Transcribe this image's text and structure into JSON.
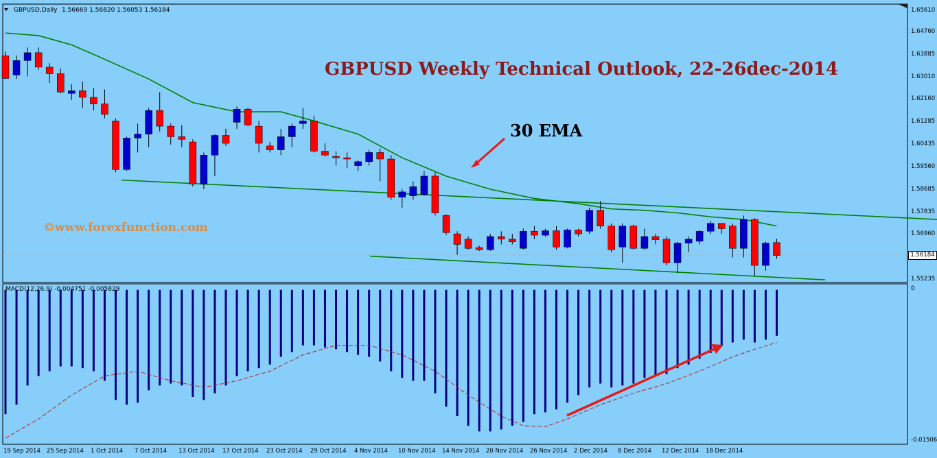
{
  "header": {
    "symbol": "GBPUSD,Daily",
    "ohlc": "1.56669 1.56820 1.56053 1.56184",
    "macd": "MACD(12,26,9) -0.004751 -0.005829"
  },
  "title": "GBPUSD Weekly Technical Outlook, 22-26dec-2014",
  "ema_label": "30 EMA",
  "watermark": "©www.forexfunction.com",
  "price_axis": [
    "1.65610",
    "1.64760",
    "1.63885",
    "1.63010",
    "1.62160",
    "1.61285",
    "1.60435",
    "1.59560",
    "1.58685",
    "1.57835",
    "1.56960",
    "1.55235"
  ],
  "current_price": "1.56184",
  "macd_axis": [
    "0",
    "-0.015064"
  ],
  "date_labels": [
    "19 Sep 2014",
    "25 Sep 2014",
    "1 Oct 2014",
    "7 Oct 2014",
    "13 Oct 2014",
    "17 Oct 2014",
    "23 Oct 2014",
    "29 Oct 2014",
    "4 Nov 2014",
    "10 Nov 2014",
    "14 Nov 2014",
    "20 Nov 2014",
    "26 Nov 2014",
    "2 Dec 2014",
    "8 Dec 2014",
    "12 Dec 2014",
    "18 Dec 2014"
  ],
  "colors": {
    "bull": "#0000CD",
    "bear": "#FF0000",
    "ema": "#008000",
    "trend": "#008000",
    "macd_hist": "#000080",
    "signal": "#B22222",
    "arrow": "#E31B1B",
    "background": "#87CEFA"
  },
  "chart_data": {
    "type": "candlestick",
    "title": "GBPUSD Weekly Technical Outlook, 22-26dec-2014",
    "ylim": [
      1.5515,
      1.6575
    ],
    "macd_ylim": [
      -0.016,
      0.0002
    ],
    "candles": [
      {
        "o": 1.6378,
        "h": 1.6395,
        "l": 1.629,
        "c": 1.6292
      },
      {
        "o": 1.6305,
        "h": 1.638,
        "l": 1.629,
        "c": 1.636
      },
      {
        "o": 1.636,
        "h": 1.641,
        "l": 1.63,
        "c": 1.639
      },
      {
        "o": 1.639,
        "h": 1.641,
        "l": 1.6325,
        "c": 1.6335
      },
      {
        "o": 1.6335,
        "h": 1.635,
        "l": 1.6275,
        "c": 1.631
      },
      {
        "o": 1.631,
        "h": 1.633,
        "l": 1.6235,
        "c": 1.624
      },
      {
        "o": 1.6235,
        "h": 1.627,
        "l": 1.621,
        "c": 1.6245
      },
      {
        "o": 1.6245,
        "h": 1.628,
        "l": 1.618,
        "c": 1.622
      },
      {
        "o": 1.622,
        "h": 1.6255,
        "l": 1.617,
        "c": 1.6195
      },
      {
        "o": 1.6195,
        "h": 1.625,
        "l": 1.614,
        "c": 1.6155
      },
      {
        "o": 1.613,
        "h": 1.614,
        "l": 1.5935,
        "c": 1.5945
      },
      {
        "o": 1.5945,
        "h": 1.607,
        "l": 1.594,
        "c": 1.6065
      },
      {
        "o": 1.6065,
        "h": 1.612,
        "l": 1.601,
        "c": 1.608
      },
      {
        "o": 1.608,
        "h": 1.618,
        "l": 1.603,
        "c": 1.617
      },
      {
        "o": 1.617,
        "h": 1.624,
        "l": 1.609,
        "c": 1.611
      },
      {
        "o": 1.611,
        "h": 1.612,
        "l": 1.604,
        "c": 1.607
      },
      {
        "o": 1.607,
        "h": 1.6115,
        "l": 1.603,
        "c": 1.606
      },
      {
        "o": 1.605,
        "h": 1.606,
        "l": 1.588,
        "c": 1.589
      },
      {
        "o": 1.589,
        "h": 1.601,
        "l": 1.587,
        "c": 1.6
      },
      {
        "o": 1.6,
        "h": 1.608,
        "l": 1.592,
        "c": 1.6075
      },
      {
        "o": 1.6075,
        "h": 1.61,
        "l": 1.6035,
        "c": 1.6045
      },
      {
        "o": 1.6125,
        "h": 1.6185,
        "l": 1.61,
        "c": 1.6175
      },
      {
        "o": 1.6175,
        "h": 1.618,
        "l": 1.611,
        "c": 1.6115
      },
      {
        "o": 1.611,
        "h": 1.613,
        "l": 1.601,
        "c": 1.6045
      },
      {
        "o": 1.6035,
        "h": 1.605,
        "l": 1.601,
        "c": 1.602
      },
      {
        "o": 1.602,
        "h": 1.61,
        "l": 1.6,
        "c": 1.607
      },
      {
        "o": 1.607,
        "h": 1.612,
        "l": 1.603,
        "c": 1.611
      },
      {
        "o": 1.612,
        "h": 1.618,
        "l": 1.61,
        "c": 1.613
      },
      {
        "o": 1.613,
        "h": 1.615,
        "l": 1.601,
        "c": 1.6015
      },
      {
        "o": 1.6015,
        "h": 1.6045,
        "l": 1.5995,
        "c": 1.6
      },
      {
        "o": 1.5995,
        "h": 1.6015,
        "l": 1.596,
        "c": 1.599
      },
      {
        "o": 1.599,
        "h": 1.601,
        "l": 1.595,
        "c": 1.5985
      },
      {
        "o": 1.596,
        "h": 1.598,
        "l": 1.594,
        "c": 1.5975
      },
      {
        "o": 1.5975,
        "h": 1.602,
        "l": 1.596,
        "c": 1.601
      },
      {
        "o": 1.601,
        "h": 1.6025,
        "l": 1.59,
        "c": 1.5985
      },
      {
        "o": 1.5985,
        "h": 1.6,
        "l": 1.583,
        "c": 1.584
      },
      {
        "o": 1.584,
        "h": 1.587,
        "l": 1.58,
        "c": 1.586
      },
      {
        "o": 1.5845,
        "h": 1.59,
        "l": 1.583,
        "c": 1.588
      },
      {
        "o": 1.585,
        "h": 1.594,
        "l": 1.5845,
        "c": 1.592
      },
      {
        "o": 1.592,
        "h": 1.5935,
        "l": 1.577,
        "c": 1.578
      },
      {
        "o": 1.577,
        "h": 1.5775,
        "l": 1.5695,
        "c": 1.5705
      },
      {
        "o": 1.57,
        "h": 1.571,
        "l": 1.562,
        "c": 1.566
      },
      {
        "o": 1.568,
        "h": 1.569,
        "l": 1.564,
        "c": 1.5645
      },
      {
        "o": 1.5648,
        "h": 1.5655,
        "l": 1.5635,
        "c": 1.564
      },
      {
        "o": 1.564,
        "h": 1.57,
        "l": 1.5635,
        "c": 1.569
      },
      {
        "o": 1.569,
        "h": 1.571,
        "l": 1.566,
        "c": 1.568
      },
      {
        "o": 1.568,
        "h": 1.57,
        "l": 1.566,
        "c": 1.567
      },
      {
        "o": 1.5645,
        "h": 1.572,
        "l": 1.564,
        "c": 1.571
      },
      {
        "o": 1.571,
        "h": 1.573,
        "l": 1.568,
        "c": 1.5695
      },
      {
        "o": 1.5695,
        "h": 1.572,
        "l": 1.569,
        "c": 1.5712
      },
      {
        "o": 1.5712,
        "h": 1.573,
        "l": 1.564,
        "c": 1.565
      },
      {
        "o": 1.565,
        "h": 1.572,
        "l": 1.5645,
        "c": 1.5715
      },
      {
        "o": 1.5715,
        "h": 1.572,
        "l": 1.569,
        "c": 1.57
      },
      {
        "o": 1.571,
        "h": 1.58,
        "l": 1.57,
        "c": 1.579
      },
      {
        "o": 1.579,
        "h": 1.5825,
        "l": 1.572,
        "c": 1.573
      },
      {
        "o": 1.573,
        "h": 1.574,
        "l": 1.563,
        "c": 1.564
      },
      {
        "o": 1.565,
        "h": 1.574,
        "l": 1.559,
        "c": 1.573
      },
      {
        "o": 1.573,
        "h": 1.5735,
        "l": 1.564,
        "c": 1.5645
      },
      {
        "o": 1.5645,
        "h": 1.572,
        "l": 1.564,
        "c": 1.569
      },
      {
        "o": 1.569,
        "h": 1.57,
        "l": 1.566,
        "c": 1.5678
      },
      {
        "o": 1.568,
        "h": 1.569,
        "l": 1.558,
        "c": 1.559
      },
      {
        "o": 1.559,
        "h": 1.567,
        "l": 1.555,
        "c": 1.5665
      },
      {
        "o": 1.5665,
        "h": 1.569,
        "l": 1.563,
        "c": 1.568
      },
      {
        "o": 1.5672,
        "h": 1.5715,
        "l": 1.566,
        "c": 1.571
      },
      {
        "o": 1.571,
        "h": 1.575,
        "l": 1.57,
        "c": 1.574
      },
      {
        "o": 1.574,
        "h": 1.574,
        "l": 1.57,
        "c": 1.572
      },
      {
        "o": 1.573,
        "h": 1.574,
        "l": 1.561,
        "c": 1.5645
      },
      {
        "o": 1.5645,
        "h": 1.577,
        "l": 1.561,
        "c": 1.5755
      },
      {
        "o": 1.5755,
        "h": 1.576,
        "l": 1.554,
        "c": 1.558
      },
      {
        "o": 1.558,
        "h": 1.567,
        "l": 1.556,
        "c": 1.5665
      },
      {
        "o": 1.5667,
        "h": 1.5682,
        "l": 1.5605,
        "c": 1.5618
      }
    ],
    "ema30": [
      {
        "i": 0,
        "v": 1.6465
      },
      {
        "i": 3,
        "v": 1.6455
      },
      {
        "i": 6,
        "v": 1.642
      },
      {
        "i": 9,
        "v": 1.6365
      },
      {
        "i": 13,
        "v": 1.629
      },
      {
        "i": 17,
        "v": 1.62
      },
      {
        "i": 21,
        "v": 1.6165
      },
      {
        "i": 25,
        "v": 1.6165
      },
      {
        "i": 28,
        "v": 1.613
      },
      {
        "i": 32,
        "v": 1.608
      },
      {
        "i": 36,
        "v": 1.599
      },
      {
        "i": 40,
        "v": 1.592
      },
      {
        "i": 44,
        "v": 1.587
      },
      {
        "i": 48,
        "v": 1.5835
      },
      {
        "i": 52,
        "v": 1.5815
      },
      {
        "i": 55,
        "v": 1.5795
      },
      {
        "i": 58,
        "v": 1.579
      },
      {
        "i": 61,
        "v": 1.578
      },
      {
        "i": 64,
        "v": 1.5765
      },
      {
        "i": 67,
        "v": 1.5755
      },
      {
        "i": 70,
        "v": 1.573
      }
    ],
    "trendlines": [
      {
        "i1": 10.5,
        "v1": 1.5905,
        "i2": 92,
        "v2": 1.574
      },
      {
        "i1": 33.1,
        "v1": 1.5615,
        "i2": 74.4,
        "v2": 1.5525
      }
    ],
    "macd_histogram": [
      -0.013,
      -0.012,
      -0.01,
      -0.009,
      -0.0085,
      -0.008,
      -0.008,
      -0.0082,
      -0.0085,
      -0.0095,
      -0.0115,
      -0.012,
      -0.0118,
      -0.0105,
      -0.01,
      -0.0098,
      -0.01,
      -0.0112,
      -0.0115,
      -0.0108,
      -0.01,
      -0.009,
      -0.0085,
      -0.0082,
      -0.0078,
      -0.007,
      -0.0065,
      -0.0058,
      -0.0058,
      -0.006,
      -0.0062,
      -0.0065,
      -0.0068,
      -0.007,
      -0.0075,
      -0.0085,
      -0.0092,
      -0.0095,
      -0.0095,
      -0.0108,
      -0.0122,
      -0.0132,
      -0.0142,
      -0.0148,
      -0.0148,
      -0.0146,
      -0.0142,
      -0.0138,
      -0.013,
      -0.0128,
      -0.0125,
      -0.0118,
      -0.011,
      -0.0102,
      -0.0098,
      -0.0102,
      -0.01,
      -0.0098,
      -0.0092,
      -0.009,
      -0.0088,
      -0.0082,
      -0.0078,
      -0.0072,
      -0.0066,
      -0.0058,
      -0.0055,
      -0.0052,
      -0.0055,
      -0.0052,
      -0.0048
    ],
    "macd_signal": [
      {
        "i": 0,
        "v": -0.0155
      },
      {
        "i": 3,
        "v": -0.0135
      },
      {
        "i": 6,
        "v": -0.011
      },
      {
        "i": 9,
        "v": -0.009
      },
      {
        "i": 12,
        "v": -0.0085
      },
      {
        "i": 15,
        "v": -0.0095
      },
      {
        "i": 18,
        "v": -0.0102
      },
      {
        "i": 21,
        "v": -0.0095
      },
      {
        "i": 24,
        "v": -0.0085
      },
      {
        "i": 27,
        "v": -0.0068
      },
      {
        "i": 30,
        "v": -0.0058
      },
      {
        "i": 33,
        "v": -0.0058
      },
      {
        "i": 36,
        "v": -0.0068
      },
      {
        "i": 39,
        "v": -0.0085
      },
      {
        "i": 42,
        "v": -0.011
      },
      {
        "i": 45,
        "v": -0.0132
      },
      {
        "i": 47,
        "v": -0.0142
      },
      {
        "i": 49,
        "v": -0.0143
      },
      {
        "i": 51,
        "v": -0.0135
      },
      {
        "i": 54,
        "v": -0.012
      },
      {
        "i": 57,
        "v": -0.0108
      },
      {
        "i": 60,
        "v": -0.0098
      },
      {
        "i": 63,
        "v": -0.0085
      },
      {
        "i": 66,
        "v": -0.007
      },
      {
        "i": 68,
        "v": -0.0062
      },
      {
        "i": 70,
        "v": -0.0055
      }
    ]
  }
}
